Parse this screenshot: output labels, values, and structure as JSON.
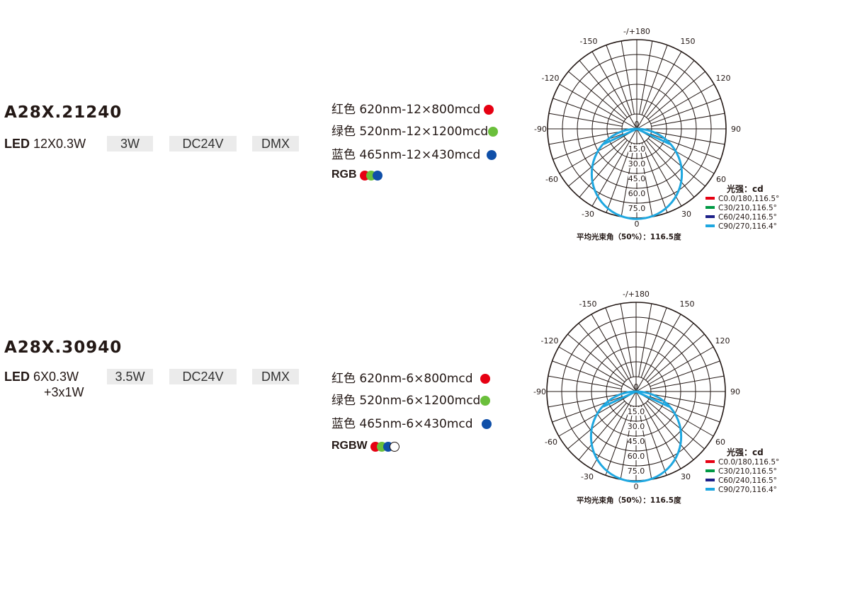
{
  "products": [
    {
      "model": "A28X.21240",
      "led_prefix": "LED",
      "led_spec": "12X0.3W",
      "led_spec_line2": "",
      "power": "3W",
      "voltage": "DC24V",
      "control": "DMX",
      "colors": [
        {
          "label": "红色 620nm-12×800mcd",
          "dot": "red"
        },
        {
          "label": "绿色 520nm-12×1200mcd",
          "dot": "green"
        },
        {
          "label": "蓝色 465nm-12×430mcd",
          "dot": "blue"
        }
      ],
      "mix_label": "RGB",
      "mix_dots": [
        "red",
        "green",
        "blue"
      ],
      "photometry": {
        "angle_labels": {
          "top": "-/+180",
          "tl": "-150",
          "tr": "150",
          "ul": "-120",
          "ur": "120",
          "ml": "-90",
          "mr": "90",
          "ll": "-60",
          "lr": "60",
          "bl": "-30",
          "br": "30",
          "bottom": "0",
          "center": "0"
        },
        "radial_ticks": [
          "15.0",
          "30.0",
          "45.0",
          "60.0",
          "75.0"
        ],
        "unit_label": "光强：cd",
        "curves": [
          {
            "label": "C0.0/180,116.5°",
            "color": "#e60012"
          },
          {
            "label": "C30/210,116.5°",
            "color": "#009944"
          },
          {
            "label": "C60/240,116.5°",
            "color": "#1d2088"
          },
          {
            "label": "C90/270,116.4°",
            "color": "#1ea7e0"
          }
        ],
        "beam_angle_text": "平均光束角（50%）：116.5度"
      }
    },
    {
      "model": "A28X.30940",
      "led_prefix": "LED",
      "led_spec": "6X0.3W",
      "led_spec_line2": "+3x1W",
      "power": "3.5W",
      "voltage": "DC24V",
      "control": "DMX",
      "colors": [
        {
          "label": "红色 620nm-6×800mcd",
          "dot": "red"
        },
        {
          "label": "绿色 520nm-6×1200mcd",
          "dot": "green"
        },
        {
          "label": "蓝色 465nm-6×430mcd",
          "dot": "blue"
        }
      ],
      "mix_label": "RGBW",
      "mix_dots": [
        "red",
        "green",
        "blue",
        "white"
      ],
      "photometry": {
        "angle_labels": {
          "top": "-/+180",
          "tl": "-150",
          "tr": "150",
          "ul": "-120",
          "ur": "120",
          "ml": "-90",
          "mr": "90",
          "ll": "-60",
          "lr": "60",
          "bl": "-30",
          "br": "30",
          "bottom": "0",
          "center": "0"
        },
        "radial_ticks": [
          "15.0",
          "30.0",
          "45.0",
          "60.0",
          "75.0"
        ],
        "unit_label": "光强：cd",
        "curves": [
          {
            "label": "C0.0/180,116.5°",
            "color": "#e60012"
          },
          {
            "label": "C30/210,116.5°",
            "color": "#009944"
          },
          {
            "label": "C60/240,116.5°",
            "color": "#1d2088"
          },
          {
            "label": "C90/270,116.4°",
            "color": "#1ea7e0"
          }
        ],
        "beam_angle_text": "平均光束角（50%）：116.5度"
      }
    }
  ]
}
